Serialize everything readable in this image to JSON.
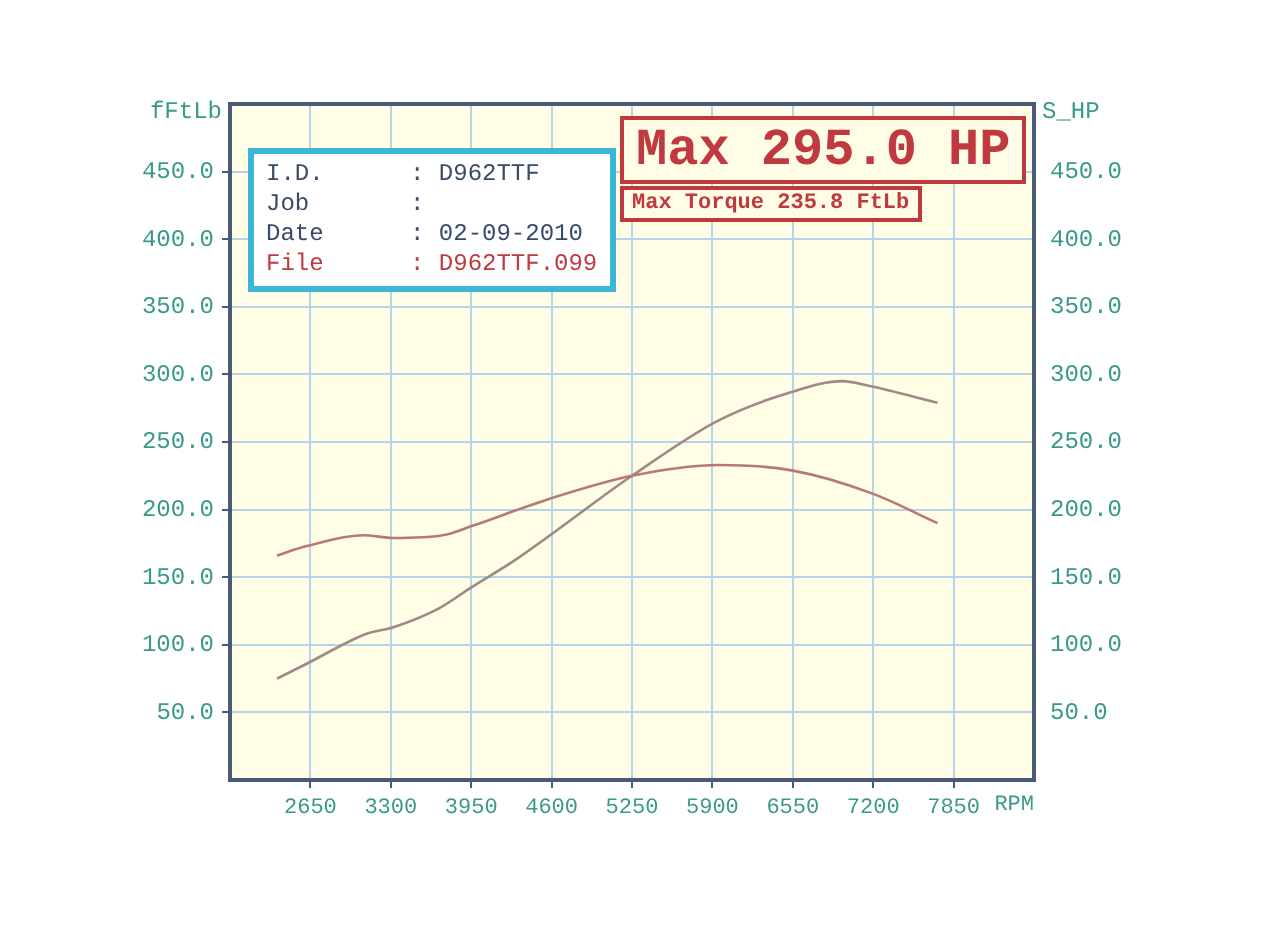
{
  "chart_data": {
    "type": "line",
    "xlabel": "RPM",
    "ylabel": "fFtLb",
    "y2label": "S_HP",
    "annotations": [
      "Max 295.0 HP",
      "Max Torque 235.8 FtLb",
      "I.D.      : D962TTF",
      "Job       :",
      "Date      : 02-09-2010",
      "File      : D962TTF.099"
    ],
    "xlim": [
      2000,
      8500
    ],
    "xticks": [
      2650,
      3300,
      3950,
      4600,
      5250,
      5900,
      6550,
      7200,
      7850
    ],
    "ylim": [
      0,
      500
    ],
    "yticks": [
      {
        "value": 50,
        "label": "50.0"
      },
      {
        "value": 100,
        "label": "100.0"
      },
      {
        "value": 150,
        "label": "150.0"
      },
      {
        "value": 200,
        "label": "200.0"
      },
      {
        "value": 250,
        "label": "250.0"
      },
      {
        "value": 300,
        "label": "300.0"
      },
      {
        "value": 350,
        "label": "350.0"
      },
      {
        "value": 400,
        "label": "400.0"
      },
      {
        "value": 450,
        "label": "450.0"
      }
    ],
    "y2lim": [
      0,
      500
    ],
    "y2ticks": [
      {
        "value": 50,
        "label": "50.0"
      },
      {
        "value": 100,
        "label": "100.0"
      },
      {
        "value": 150,
        "label": "150.0"
      },
      {
        "value": 200,
        "label": "200.0"
      },
      {
        "value": 250,
        "label": "250.0"
      },
      {
        "value": 300,
        "label": "300.0"
      },
      {
        "value": 350,
        "label": "350.0"
      },
      {
        "value": 400,
        "label": "400.0"
      },
      {
        "value": 450,
        "label": "450.0"
      }
    ],
    "grid": true,
    "legend": false,
    "marker": "none",
    "line_style": "solid",
    "series": [
      {
        "color": "#b87878",
        "x": [
          2380,
          2620,
          3080,
          3320,
          3720,
          3960,
          4550,
          5250,
          5950,
          6540,
          7190,
          7720
        ],
        "values": [
          166,
          173,
          181,
          179,
          181,
          188,
          207,
          225,
          233,
          229,
          212,
          190
        ]
      },
      {
        "color": "#a08888",
        "axis": "y2",
        "x": [
          2380,
          2620,
          3100,
          3320,
          3690,
          3960,
          4310,
          5250,
          5950,
          6540,
          6950,
          7190,
          7720
        ],
        "values": [
          75,
          86,
          108,
          113,
          127,
          143,
          163,
          225,
          266,
          287,
          295,
          291,
          279
        ]
      }
    ]
  }
}
